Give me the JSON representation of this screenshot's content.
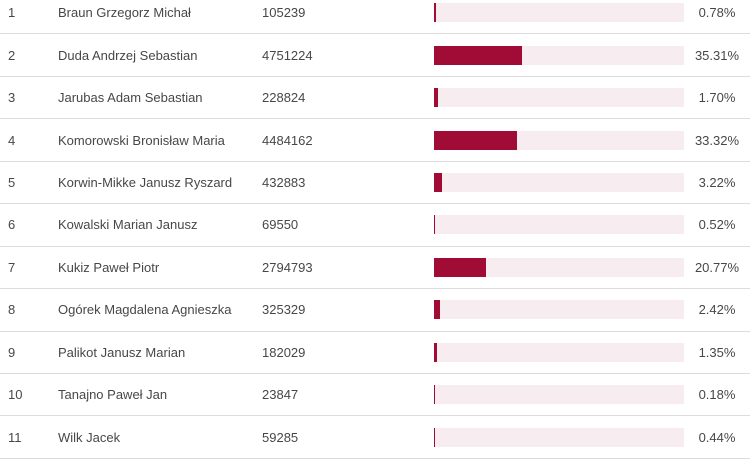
{
  "colors": {
    "bar_fill": "#a00c35",
    "bar_track": "#f7ecef",
    "row_border": "#dcdcdc",
    "text_color": "#474747",
    "background": "#ffffff"
  },
  "table": {
    "rows": [
      {
        "rank": "1",
        "name": "Braun Grzegorz Michał",
        "votes": "105239",
        "percent_label": "0.78%",
        "percent": 0.78
      },
      {
        "rank": "2",
        "name": "Duda Andrzej Sebastian",
        "votes": "4751224",
        "percent_label": "35.31%",
        "percent": 35.31
      },
      {
        "rank": "3",
        "name": "Jarubas Adam Sebastian",
        "votes": "228824",
        "percent_label": "1.70%",
        "percent": 1.7
      },
      {
        "rank": "4",
        "name": "Komorowski Bronisław Maria",
        "votes": "4484162",
        "percent_label": "33.32%",
        "percent": 33.32
      },
      {
        "rank": "5",
        "name": "Korwin-Mikke Janusz Ryszard",
        "votes": "432883",
        "percent_label": "3.22%",
        "percent": 3.22
      },
      {
        "rank": "6",
        "name": "Kowalski Marian Janusz",
        "votes": "69550",
        "percent_label": "0.52%",
        "percent": 0.52
      },
      {
        "rank": "7",
        "name": "Kukiz Paweł Piotr",
        "votes": "2794793",
        "percent_label": "20.77%",
        "percent": 20.77
      },
      {
        "rank": "8",
        "name": "Ogórek Magdalena Agnieszka",
        "votes": "325329",
        "percent_label": "2.42%",
        "percent": 2.42
      },
      {
        "rank": "9",
        "name": "Palikot Janusz Marian",
        "votes": "182029",
        "percent_label": "1.35%",
        "percent": 1.35
      },
      {
        "rank": "10",
        "name": "Tanajno Paweł Jan",
        "votes": "23847",
        "percent_label": "0.18%",
        "percent": 0.18
      },
      {
        "rank": "11",
        "name": "Wilk Jacek",
        "votes": "59285",
        "percent_label": "0.44%",
        "percent": 0.44
      }
    ]
  },
  "chart_data": {
    "type": "bar",
    "orientation": "horizontal",
    "categories": [
      "Braun Grzegorz Michał",
      "Duda Andrzej Sebastian",
      "Jarubas Adam Sebastian",
      "Komorowski Bronisław Maria",
      "Korwin-Mikke Janusz Ryszard",
      "Kowalski Marian Janusz",
      "Kukiz Paweł Piotr",
      "Ogórek Magdalena Agnieszka",
      "Palikot Janusz Marian",
      "Tanajno Paweł Jan",
      "Wilk Jacek"
    ],
    "series": [
      {
        "name": "percent",
        "values": [
          0.78,
          35.31,
          1.7,
          33.32,
          3.22,
          0.52,
          20.77,
          2.42,
          1.35,
          0.18,
          0.44
        ]
      },
      {
        "name": "votes",
        "values": [
          105239,
          4751224,
          228824,
          4484162,
          432883,
          69550,
          2794793,
          325329,
          182029,
          23847,
          59285
        ]
      }
    ],
    "title": "",
    "xlabel": "",
    "ylabel": "",
    "xlim": [
      0,
      100
    ],
    "grid": false,
    "legend": false
  }
}
